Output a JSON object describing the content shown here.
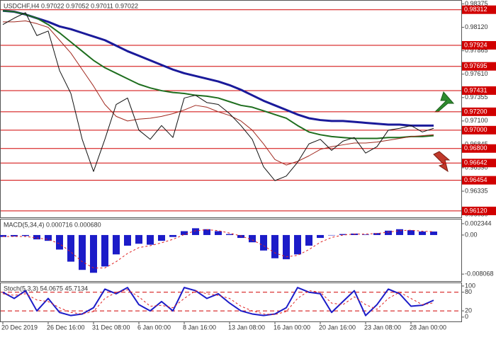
{
  "chart_data": [
    {
      "type": "line",
      "title": "USDCHF,H4  0.97022 0.97052 0.97011 0.97022",
      "categories": [
        "20 Dec 2019",
        null,
        null,
        null,
        "26 Dec 16:00",
        null,
        null,
        null,
        "31 Dec 08:00",
        null,
        null,
        null,
        "6 Jan 00:00",
        null,
        null,
        null,
        "8 Jan 16:00",
        null,
        null,
        null,
        "13 Jan 08:00",
        null,
        null,
        null,
        "16 Jan 00:00",
        null,
        null,
        null,
        "20 Jan 16:00",
        null,
        null,
        null,
        "23 Jan 08:00",
        null,
        null,
        null,
        "28 Jan 00:00",
        null,
        null
      ],
      "ylim": [
        0.9605,
        0.9841
      ],
      "yticks": [
        0.98375,
        {
          "value": 0.9812,
          "label": "0.98120"
        },
        0.97865,
        {
          "value": 0.9761,
          "label": "0.97610"
        },
        0.97355,
        {
          "value": 0.971,
          "label": "0.97100"
        },
        0.96845,
        {
          "value": 0.9659,
          "label": "0.96590"
        },
        0.96335,
        {
          "value": 0.9608,
          "label": "0.96080"
        }
      ],
      "levels": [
        0.98312,
        0.97924,
        0.97695,
        0.97431,
        {
          "value": 0.972,
          "label": "0.97200"
        },
        {
          "value": 0.97,
          "label": "0.97000"
        },
        {
          "value": 0.968,
          "label": "0.96800"
        },
        0.96642,
        0.96454,
        {
          "value": 0.9612,
          "label": "0.96120"
        }
      ],
      "level_color": "#d10000",
      "series": [
        {
          "type": "line",
          "color": "#1a1a9a",
          "width": 3,
          "values": [
            0.983,
            0.9829,
            0.9826,
            0.9822,
            0.9818,
            0.9813,
            0.981,
            0.9806,
            0.9802,
            0.9798,
            0.9792,
            0.9786,
            0.9781,
            0.9776,
            0.9771,
            0.9766,
            0.9762,
            0.9759,
            0.9756,
            0.9753,
            0.9749,
            0.9744,
            0.9738,
            0.9732,
            0.9727,
            0.9722,
            0.9717,
            0.9713,
            0.9711,
            0.971,
            0.971,
            0.9709,
            0.9708,
            0.9707,
            0.9706,
            0.9706,
            0.9705,
            0.9705,
            0.9705
          ]
        },
        {
          "type": "line",
          "color": "#1e6e1e",
          "width": 2,
          "values": [
            0.983,
            0.9829,
            0.9826,
            0.9822,
            0.9815,
            0.9806,
            0.9796,
            0.9786,
            0.9776,
            0.9768,
            0.9762,
            0.9756,
            0.975,
            0.9746,
            0.9743,
            0.9741,
            0.974,
            0.9738,
            0.9737,
            0.9735,
            0.9731,
            0.9727,
            0.9725,
            0.9721,
            0.9717,
            0.9713,
            0.9705,
            0.9698,
            0.9695,
            0.9693,
            0.9692,
            0.9691,
            0.9691,
            0.9691,
            0.9692,
            0.9692,
            0.9693,
            0.9693,
            0.9694
          ]
        },
        {
          "type": "line",
          "color": "#a0281e",
          "width": 1,
          "values": [
            0.9818,
            0.9818,
            0.9819,
            0.9816,
            0.9812,
            0.9798,
            0.9784,
            0.9766,
            0.9748,
            0.9728,
            0.9715,
            0.971,
            0.9712,
            0.9713,
            0.9715,
            0.9718,
            0.9722,
            0.9727,
            0.9725,
            0.972,
            0.9716,
            0.971,
            0.97,
            0.9685,
            0.9668,
            0.9662,
            0.9666,
            0.9672,
            0.9679,
            0.9682,
            0.9684,
            0.9686,
            0.9686,
            0.9687,
            0.9689,
            0.9691,
            0.9693,
            0.9694,
            0.9695
          ]
        },
        {
          "type": "line",
          "color": "#111111",
          "width": 1,
          "values": [
            0.9815,
            0.9822,
            0.9828,
            0.9803,
            0.9808,
            0.9765,
            0.974,
            0.969,
            0.9655,
            0.969,
            0.9728,
            0.9735,
            0.97,
            0.969,
            0.9705,
            0.9692,
            0.9735,
            0.9738,
            0.973,
            0.9728,
            0.9718,
            0.9705,
            0.969,
            0.966,
            0.9645,
            0.965,
            0.9665,
            0.9685,
            0.969,
            0.9678,
            0.9688,
            0.9692,
            0.9675,
            0.9682,
            0.97,
            0.9702,
            0.9705,
            0.9698,
            0.9702
          ]
        }
      ]
    },
    {
      "type": "bar",
      "title": "MACD(5,34,4)  0.000716 0.000680",
      "ylim": [
        -0.00951,
        0.00321
      ],
      "yticks": [
        0.002344,
        {
          "value": 0,
          "label": "0.00"
        },
        -0.008068
      ],
      "series": [
        {
          "type": "bar",
          "color": "#1c1cc8",
          "values": [
            -0.0004,
            -0.0003,
            -0.0002,
            -0.0009,
            -0.0012,
            -0.003,
            -0.0055,
            -0.0072,
            -0.0078,
            -0.0065,
            -0.004,
            -0.0022,
            -0.0018,
            -0.002,
            -0.0012,
            -0.0004,
            0.0008,
            0.0014,
            0.0012,
            0.0008,
            0.0002,
            -0.0006,
            -0.0015,
            -0.0032,
            -0.0048,
            -0.005,
            -0.004,
            -0.0022,
            -0.0006,
            0.0,
            0.0002,
            0.0003,
            0.0001,
            0.0004,
            0.0009,
            0.0012,
            0.001,
            0.00072,
            0.000716
          ]
        },
        {
          "type": "line",
          "color": "#e02020",
          "width": 1,
          "dashed": true,
          "values": [
            -0.0003,
            -0.0003,
            -0.0003,
            -0.0006,
            -0.0009,
            -0.0018,
            -0.0035,
            -0.0055,
            -0.0068,
            -0.0068,
            -0.0055,
            -0.0038,
            -0.0026,
            -0.0022,
            -0.0016,
            -0.0009,
            0.0001,
            0.0009,
            0.0011,
            0.0009,
            0.0004,
            -0.0002,
            -0.001,
            -0.0022,
            -0.0037,
            -0.0045,
            -0.0042,
            -0.003,
            -0.0015,
            -0.0005,
            0.0,
            0.0002,
            0.0002,
            0.0003,
            0.0006,
            0.0009,
            0.001,
            0.0008,
            0.00068
          ]
        }
      ]
    },
    {
      "type": "line",
      "title": "Stoch(5,3,3)  54.0675 45.7134",
      "ylim": [
        -14,
        109
      ],
      "yticks": [
        100,
        80,
        20,
        0
      ],
      "hlines": [
        80,
        20
      ],
      "hline_color": "#d10000",
      "series": [
        {
          "type": "line",
          "color": "#1c1cc8",
          "width": 2,
          "values": [
            80,
            60,
            85,
            20,
            60,
            15,
            5,
            10,
            30,
            90,
            75,
            95,
            40,
            20,
            50,
            20,
            95,
            85,
            60,
            75,
            45,
            20,
            10,
            5,
            10,
            30,
            95,
            80,
            75,
            15,
            50,
            85,
            5,
            40,
            90,
            75,
            35,
            38,
            54.0675
          ]
        },
        {
          "type": "line",
          "color": "#e02020",
          "width": 1,
          "dashed": true,
          "values": [
            75,
            70,
            75,
            55,
            50,
            30,
            15,
            10,
            18,
            60,
            80,
            88,
            65,
            35,
            38,
            30,
            60,
            85,
            75,
            70,
            60,
            35,
            20,
            10,
            8,
            18,
            60,
            85,
            80,
            45,
            40,
            65,
            40,
            25,
            60,
            80,
            60,
            40,
            45.7134
          ]
        }
      ]
    }
  ]
}
